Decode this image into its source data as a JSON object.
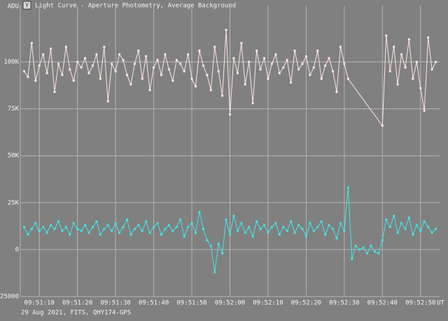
{
  "chart_data": {
    "type": "line",
    "title": "Light Curve - Aperture Photometry, Average Background",
    "ylabel": "ADU",
    "xlabel": "UT",
    "footer": "29 Aug 2021, FITS, QHY174-GPS",
    "xlim": [
      "09:51:05",
      "09:52:55"
    ],
    "xticks": [
      "09:51:10",
      "09:51:20",
      "09:51:30",
      "09:51:40",
      "09:51:50",
      "09:52:00",
      "09:52:10",
      "09:52:20",
      "09:52:30",
      "09:52:40",
      "09:52:50"
    ],
    "ylim": [
      -25000,
      130000
    ],
    "yticks": [
      {
        "value": 100000,
        "label": "100K"
      },
      {
        "value": 75000,
        "label": "75K"
      },
      {
        "value": 50000,
        "label": "50K"
      },
      {
        "value": 25000,
        "label": "25K"
      },
      0,
      -25000
    ],
    "grid": true,
    "series": [
      {
        "color": "#ffe4e4",
        "x": [
          "09:51:06",
          "09:51:07",
          "09:51:08",
          "09:51:09",
          "09:51:10",
          "09:51:11",
          "09:51:12",
          "09:51:13",
          "09:51:14",
          "09:51:15",
          "09:51:16",
          "09:51:17",
          "09:51:18",
          "09:51:19",
          "09:51:20",
          "09:51:21",
          "09:51:22",
          "09:51:23",
          "09:51:24",
          "09:51:25",
          "09:51:26",
          "09:51:27",
          "09:51:28",
          "09:51:29",
          "09:51:30",
          "09:51:31",
          "09:51:32",
          "09:51:33",
          "09:51:34",
          "09:51:35",
          "09:51:36",
          "09:51:37",
          "09:51:38",
          "09:51:39",
          "09:51:40",
          "09:51:41",
          "09:51:42",
          "09:51:43",
          "09:51:44",
          "09:51:45",
          "09:51:46",
          "09:51:47",
          "09:51:48",
          "09:51:49",
          "09:51:50",
          "09:51:51",
          "09:51:52",
          "09:51:53",
          "09:51:54",
          "09:51:55",
          "09:51:56",
          "09:51:57",
          "09:51:58",
          "09:51:59",
          "09:52:00",
          "09:52:01",
          "09:52:02",
          "09:52:03",
          "09:52:04",
          "09:52:05",
          "09:52:06",
          "09:52:07",
          "09:52:08",
          "09:52:09",
          "09:52:10",
          "09:52:11",
          "09:52:12",
          "09:52:13",
          "09:52:14",
          "09:52:15",
          "09:52:16",
          "09:52:17",
          "09:52:18",
          "09:52:19",
          "09:52:20",
          "09:52:21",
          "09:52:22",
          "09:52:23",
          "09:52:24",
          "09:52:25",
          "09:52:26",
          "09:52:27",
          "09:52:28",
          "09:52:29",
          "09:52:30",
          "09:52:31",
          "09:52:40",
          "09:52:41",
          "09:52:42",
          "09:52:43",
          "09:52:44",
          "09:52:45",
          "09:52:46",
          "09:52:47",
          "09:52:48",
          "09:52:49",
          "09:52:50",
          "09:52:51",
          "09:52:52",
          "09:52:53",
          "09:52:54"
        ],
        "values": [
          95000,
          92000,
          110000,
          90000,
          98000,
          104000,
          94000,
          107000,
          84000,
          99000,
          93000,
          108000,
          96000,
          90000,
          100000,
          97000,
          102000,
          94000,
          98000,
          104000,
          91000,
          108000,
          79000,
          99000,
          95000,
          104000,
          101000,
          93000,
          88000,
          99000,
          106000,
          91000,
          103000,
          85000,
          97000,
          101000,
          93000,
          104000,
          96000,
          90000,
          101000,
          99000,
          95000,
          104000,
          91000,
          87000,
          106000,
          98000,
          93000,
          85000,
          108000,
          95000,
          82000,
          117000,
          72000,
          102000,
          94000,
          110000,
          88000,
          100000,
          78000,
          106000,
          96000,
          102000,
          91000,
          99000,
          104000,
          94000,
          97000,
          101000,
          89000,
          106000,
          96000,
          99000,
          103000,
          93000,
          97000,
          106000,
          91000,
          98000,
          102000,
          95000,
          84000,
          108000,
          99000,
          91000,
          66000,
          114000,
          95000,
          108000,
          88000,
          104000,
          97000,
          112000,
          91000,
          100000,
          86000,
          74000,
          113000,
          96000,
          100000
        ]
      },
      {
        "color": "#3fe6e6",
        "x": [
          "09:51:06",
          "09:51:07",
          "09:51:08",
          "09:51:09",
          "09:51:10",
          "09:51:11",
          "09:51:12",
          "09:51:13",
          "09:51:14",
          "09:51:15",
          "09:51:16",
          "09:51:17",
          "09:51:18",
          "09:51:19",
          "09:51:20",
          "09:51:21",
          "09:51:22",
          "09:51:23",
          "09:51:24",
          "09:51:25",
          "09:51:26",
          "09:51:27",
          "09:51:28",
          "09:51:29",
          "09:51:30",
          "09:51:31",
          "09:51:32",
          "09:51:33",
          "09:51:34",
          "09:51:35",
          "09:51:36",
          "09:51:37",
          "09:51:38",
          "09:51:39",
          "09:51:40",
          "09:51:41",
          "09:51:42",
          "09:51:43",
          "09:51:44",
          "09:51:45",
          "09:51:46",
          "09:51:47",
          "09:51:48",
          "09:51:49",
          "09:51:50",
          "09:51:51",
          "09:51:52",
          "09:51:53",
          "09:51:54",
          "09:51:55",
          "09:51:56",
          "09:51:57",
          "09:51:58",
          "09:51:59",
          "09:52:00",
          "09:52:01",
          "09:52:02",
          "09:52:03",
          "09:52:04",
          "09:52:05",
          "09:52:06",
          "09:52:07",
          "09:52:08",
          "09:52:09",
          "09:52:10",
          "09:52:11",
          "09:52:12",
          "09:52:13",
          "09:52:14",
          "09:52:15",
          "09:52:16",
          "09:52:17",
          "09:52:18",
          "09:52:19",
          "09:52:20",
          "09:52:21",
          "09:52:22",
          "09:52:23",
          "09:52:24",
          "09:52:25",
          "09:52:26",
          "09:52:27",
          "09:52:28",
          "09:52:29",
          "09:52:30",
          "09:52:31",
          "09:52:32",
          "09:52:33",
          "09:52:34",
          "09:52:35",
          "09:52:36",
          "09:52:37",
          "09:52:38",
          "09:52:39",
          "09:52:40",
          "09:52:41",
          "09:52:42",
          "09:52:43",
          "09:52:44",
          "09:52:45",
          "09:52:46",
          "09:52:47",
          "09:52:48",
          "09:52:49",
          "09:52:50",
          "09:52:51",
          "09:52:52",
          "09:52:53",
          "09:52:54"
        ],
        "values": [
          12000,
          8000,
          11000,
          14000,
          10000,
          12000,
          9000,
          13000,
          11000,
          15000,
          10000,
          12000,
          8000,
          14000,
          11000,
          10000,
          13000,
          9000,
          12000,
          15000,
          8000,
          11000,
          13000,
          10000,
          14000,
          9000,
          12000,
          16000,
          8000,
          11000,
          13000,
          10000,
          15000,
          9000,
          12000,
          14000,
          8000,
          11000,
          13000,
          10000,
          12000,
          16000,
          7000,
          12000,
          14000,
          9000,
          20000,
          11000,
          5000,
          2000,
          -12000,
          3000,
          -2000,
          16000,
          8000,
          18000,
          10000,
          14000,
          9000,
          12000,
          7000,
          15000,
          11000,
          13000,
          9000,
          12000,
          14000,
          8000,
          12000,
          10000,
          15000,
          9000,
          13000,
          11000,
          7000,
          14000,
          10000,
          12000,
          15000,
          8000,
          13000,
          11000,
          6000,
          14000,
          10000,
          33000,
          -5000,
          2000,
          0,
          1000,
          -2000,
          2000,
          -1000,
          -2000,
          5000,
          16000,
          12000,
          18000,
          9000,
          14000,
          11000,
          17000,
          8000,
          13000,
          10000,
          15000,
          12000,
          9000,
          11000
        ]
      }
    ]
  }
}
